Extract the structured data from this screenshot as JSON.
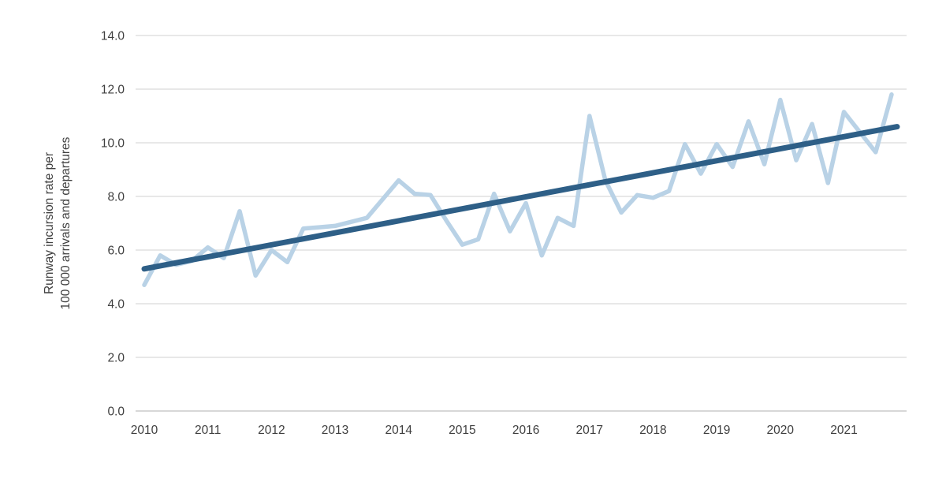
{
  "chart_data": {
    "type": "line",
    "title": "",
    "ylabel_line1": "Runway incursion rate per",
    "ylabel_line2": "100 000 arrivals and departures",
    "xlabel": "",
    "x_tick_labels": [
      "2010",
      "2011",
      "2012",
      "2013",
      "2014",
      "2015",
      "2016",
      "2017",
      "2018",
      "2019",
      "2020",
      "2021"
    ],
    "y_tick_labels": [
      "0.0",
      "2.0",
      "4.0",
      "6.0",
      "8.0",
      "10.0",
      "12.0",
      "14.0"
    ],
    "y_ticks": [
      0,
      2,
      4,
      6,
      8,
      10,
      12,
      14
    ],
    "ylim": [
      0,
      14
    ],
    "points_per_year": 4,
    "grid": "horizontal-only",
    "legend": "none",
    "series": [
      {
        "name": "quarterly-incursion-rate",
        "color": "#b9d2e6",
        "values": [
          4.7,
          5.8,
          5.45,
          5.6,
          6.1,
          5.7,
          7.45,
          5.05,
          6.0,
          5.55,
          6.8,
          6.85,
          6.9,
          7.05,
          7.2,
          7.9,
          8.6,
          8.1,
          8.05,
          7.1,
          6.2,
          6.4,
          8.1,
          6.7,
          7.75,
          5.8,
          7.2,
          6.9,
          11.0,
          8.6,
          7.4,
          8.05,
          7.95,
          8.2,
          9.95,
          8.85,
          9.95,
          9.1,
          10.8,
          9.2,
          11.6,
          9.35,
          10.7,
          8.5,
          11.15,
          10.4,
          9.65,
          11.8
        ]
      },
      {
        "name": "trend-line",
        "color": "#2e5f87",
        "trend_start": 5.3,
        "trend_end": 10.6
      }
    ]
  },
  "colors": {
    "gridline": "#d9d9d9",
    "baseline": "#bfbfbf",
    "axis_text": "#3f3f3f",
    "background": "#ffffff"
  }
}
